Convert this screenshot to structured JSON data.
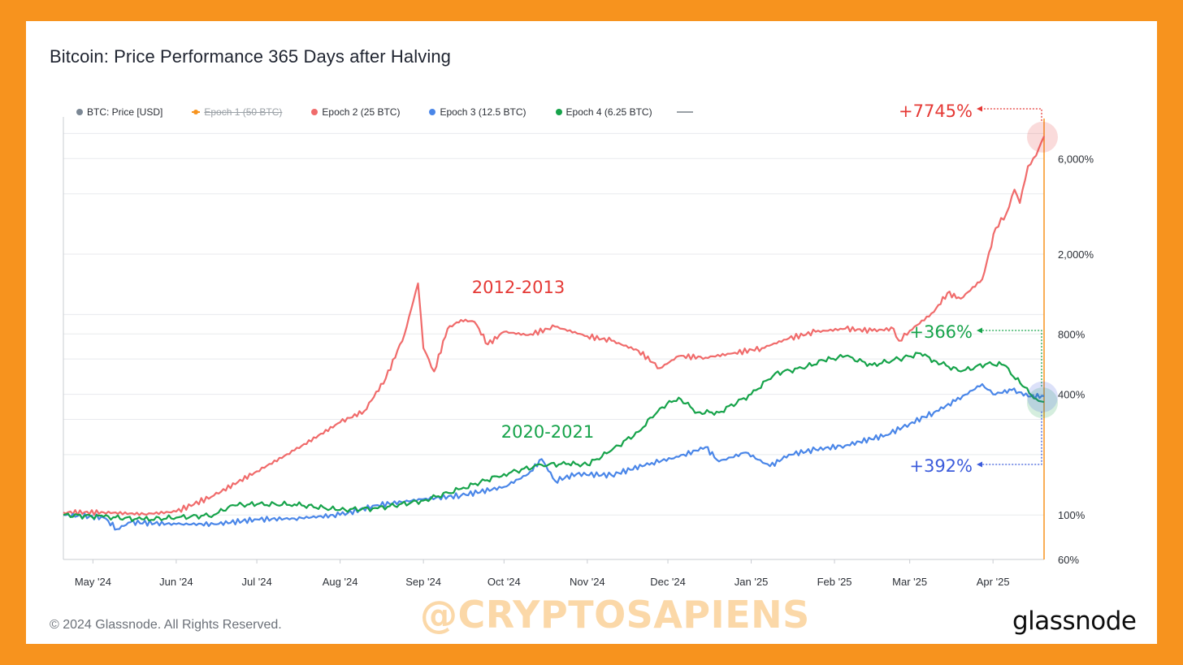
{
  "title": "Bitcoin: Price Performance 365 Days after Halving",
  "legend": [
    {
      "label": "BTC: Price [USD]",
      "color": "#7b8794",
      "struck": false
    },
    {
      "label": "Epoch 1 (50 BTC)",
      "color": "#F7931E",
      "struck": true
    },
    {
      "label": "Epoch 2 (25 BTC)",
      "color": "#F06B6B",
      "struck": false
    },
    {
      "label": "Epoch 3 (12.5 BTC)",
      "color": "#4A86E8",
      "struck": false
    },
    {
      "label": "Epoch 4 (6.25 BTC)",
      "color": "#16A34A",
      "struck": false
    }
  ],
  "footer": "© 2024 Glassnode. All Rights Reserved.",
  "watermark": "@CRYPTOSAPIENS",
  "brand": "glassnode",
  "chart_data": {
    "type": "line",
    "title": "Bitcoin: Price Performance 365 Days after Halving",
    "x_labels": [
      "May '24",
      "Jun '24",
      "Jul '24",
      "Aug '24",
      "Sep '24",
      "Oct '24",
      "Nov '24",
      "Dec '24",
      "Jan '25",
      "Feb '25",
      "Mar '25",
      "Apr '25"
    ],
    "x_range": [
      "2024-04-20",
      "2025-04-20"
    ],
    "y_scale": "log",
    "y_ticks": [
      {
        "value": 60,
        "label": "60%"
      },
      {
        "value": 100,
        "label": "100%"
      },
      {
        "value": 400,
        "label": "400%"
      },
      {
        "value": 800,
        "label": "800%"
      },
      {
        "value": 2000,
        "label": "2,000%"
      },
      {
        "value": 6000,
        "label": "6,000%"
      }
    ],
    "ylim": [
      60,
      9500
    ],
    "grid": true,
    "series": [
      {
        "name": "Epoch 2 (25 BTC)",
        "color": "#F06B6B",
        "points": [
          [
            "2024-04-20",
            103
          ],
          [
            "2024-05-05",
            103
          ],
          [
            "2024-05-20",
            101
          ],
          [
            "2024-06-01",
            104
          ],
          [
            "2024-06-15",
            125
          ],
          [
            "2024-07-01",
            165
          ],
          [
            "2024-07-15",
            210
          ],
          [
            "2024-08-01",
            290
          ],
          [
            "2024-08-10",
            330
          ],
          [
            "2024-08-18",
            480
          ],
          [
            "2024-08-25",
            800
          ],
          [
            "2024-08-30",
            1430
          ],
          [
            "2024-09-01",
            680
          ],
          [
            "2024-09-05",
            520
          ],
          [
            "2024-09-10",
            850
          ],
          [
            "2024-09-15",
            940
          ],
          [
            "2024-09-20",
            920
          ],
          [
            "2024-09-25",
            710
          ],
          [
            "2024-10-01",
            820
          ],
          [
            "2024-10-10",
            790
          ],
          [
            "2024-10-20",
            870
          ],
          [
            "2024-11-01",
            780
          ],
          [
            "2024-11-10",
            740
          ],
          [
            "2024-11-20",
            660
          ],
          [
            "2024-11-28",
            540
          ],
          [
            "2024-12-05",
            620
          ],
          [
            "2024-12-15",
            610
          ],
          [
            "2024-12-25",
            640
          ],
          [
            "2025-01-05",
            680
          ],
          [
            "2025-01-15",
            760
          ],
          [
            "2025-01-25",
            820
          ],
          [
            "2025-02-05",
            850
          ],
          [
            "2025-02-15",
            830
          ],
          [
            "2025-02-23",
            850
          ],
          [
            "2025-02-25",
            740
          ],
          [
            "2025-03-01",
            830
          ],
          [
            "2025-03-10",
            1030
          ],
          [
            "2025-03-15",
            1280
          ],
          [
            "2025-03-20",
            1200
          ],
          [
            "2025-03-28",
            1500
          ],
          [
            "2025-04-02",
            2700
          ],
          [
            "2025-04-06",
            3200
          ],
          [
            "2025-04-09",
            4200
          ],
          [
            "2025-04-11",
            3600
          ],
          [
            "2025-04-14",
            5500
          ],
          [
            "2025-04-17",
            6200
          ],
          [
            "2025-04-20",
            7745
          ]
        ]
      },
      {
        "name": "Epoch 3 (12.5 BTC)",
        "color": "#4A86E8",
        "points": [
          [
            "2024-04-20",
            100
          ],
          [
            "2024-05-05",
            97
          ],
          [
            "2024-05-10",
            85
          ],
          [
            "2024-05-15",
            92
          ],
          [
            "2024-06-01",
            90
          ],
          [
            "2024-06-15",
            90
          ],
          [
            "2024-07-01",
            95
          ],
          [
            "2024-07-15",
            96
          ],
          [
            "2024-08-01",
            100
          ],
          [
            "2024-08-15",
            112
          ],
          [
            "2024-09-01",
            120
          ],
          [
            "2024-09-15",
            125
          ],
          [
            "2024-10-01",
            138
          ],
          [
            "2024-10-10",
            160
          ],
          [
            "2024-10-15",
            190
          ],
          [
            "2024-10-20",
            148
          ],
          [
            "2024-10-28",
            160
          ],
          [
            "2024-11-10",
            158
          ],
          [
            "2024-11-25",
            182
          ],
          [
            "2024-12-05",
            195
          ],
          [
            "2024-12-15",
            218
          ],
          [
            "2024-12-20",
            185
          ],
          [
            "2024-12-30",
            205
          ],
          [
            "2025-01-08",
            175
          ],
          [
            "2025-01-15",
            200
          ],
          [
            "2025-01-25",
            212
          ],
          [
            "2025-02-05",
            222
          ],
          [
            "2025-02-20",
            250
          ],
          [
            "2025-03-01",
            285
          ],
          [
            "2025-03-10",
            325
          ],
          [
            "2025-03-18",
            370
          ],
          [
            "2025-03-28",
            450
          ],
          [
            "2025-04-01",
            400
          ],
          [
            "2025-04-08",
            420
          ],
          [
            "2025-04-15",
            390
          ],
          [
            "2025-04-20",
            392
          ]
        ]
      },
      {
        "name": "Epoch 4 (6.25 BTC)",
        "color": "#16A34A",
        "points": [
          [
            "2024-04-20",
            100
          ],
          [
            "2024-05-05",
            98
          ],
          [
            "2024-05-20",
            95
          ],
          [
            "2024-06-01",
            97
          ],
          [
            "2024-06-15",
            100
          ],
          [
            "2024-06-22",
            112
          ],
          [
            "2024-07-01",
            113
          ],
          [
            "2024-07-15",
            113
          ],
          [
            "2024-08-01",
            106
          ],
          [
            "2024-08-15",
            108
          ],
          [
            "2024-09-01",
            118
          ],
          [
            "2024-09-15",
            135
          ],
          [
            "2024-10-01",
            160
          ],
          [
            "2024-10-15",
            178
          ],
          [
            "2024-10-25",
            180
          ],
          [
            "2024-11-01",
            178
          ],
          [
            "2024-11-10",
            210
          ],
          [
            "2024-11-20",
            260
          ],
          [
            "2024-11-28",
            340
          ],
          [
            "2024-12-05",
            385
          ],
          [
            "2024-12-12",
            325
          ],
          [
            "2024-12-20",
            325
          ],
          [
            "2025-01-01",
            400
          ],
          [
            "2025-01-10",
            510
          ],
          [
            "2025-01-20",
            540
          ],
          [
            "2025-01-28",
            590
          ],
          [
            "2025-02-05",
            620
          ],
          [
            "2025-02-15",
            560
          ],
          [
            "2025-02-25",
            600
          ],
          [
            "2025-03-05",
            640
          ],
          [
            "2025-03-10",
            590
          ],
          [
            "2025-03-20",
            520
          ],
          [
            "2025-03-30",
            570
          ],
          [
            "2025-04-05",
            560
          ],
          [
            "2025-04-12",
            440
          ],
          [
            "2025-04-17",
            380
          ],
          [
            "2025-04-20",
            366
          ]
        ]
      }
    ],
    "annotations": [
      {
        "text": "+7745%",
        "color": "#E53935",
        "series": "Epoch 2 (25 BTC)"
      },
      {
        "text": "+366%",
        "color": "#16A34A",
        "series": "Epoch 4 (6.25 BTC)"
      },
      {
        "text": "+392%",
        "color": "#3B5BDB",
        "series": "Epoch 3 (12.5 BTC)"
      },
      {
        "text": "2012-2013",
        "color": "#E53935"
      },
      {
        "text": "2020-2021",
        "color": "#16A34A"
      }
    ]
  }
}
